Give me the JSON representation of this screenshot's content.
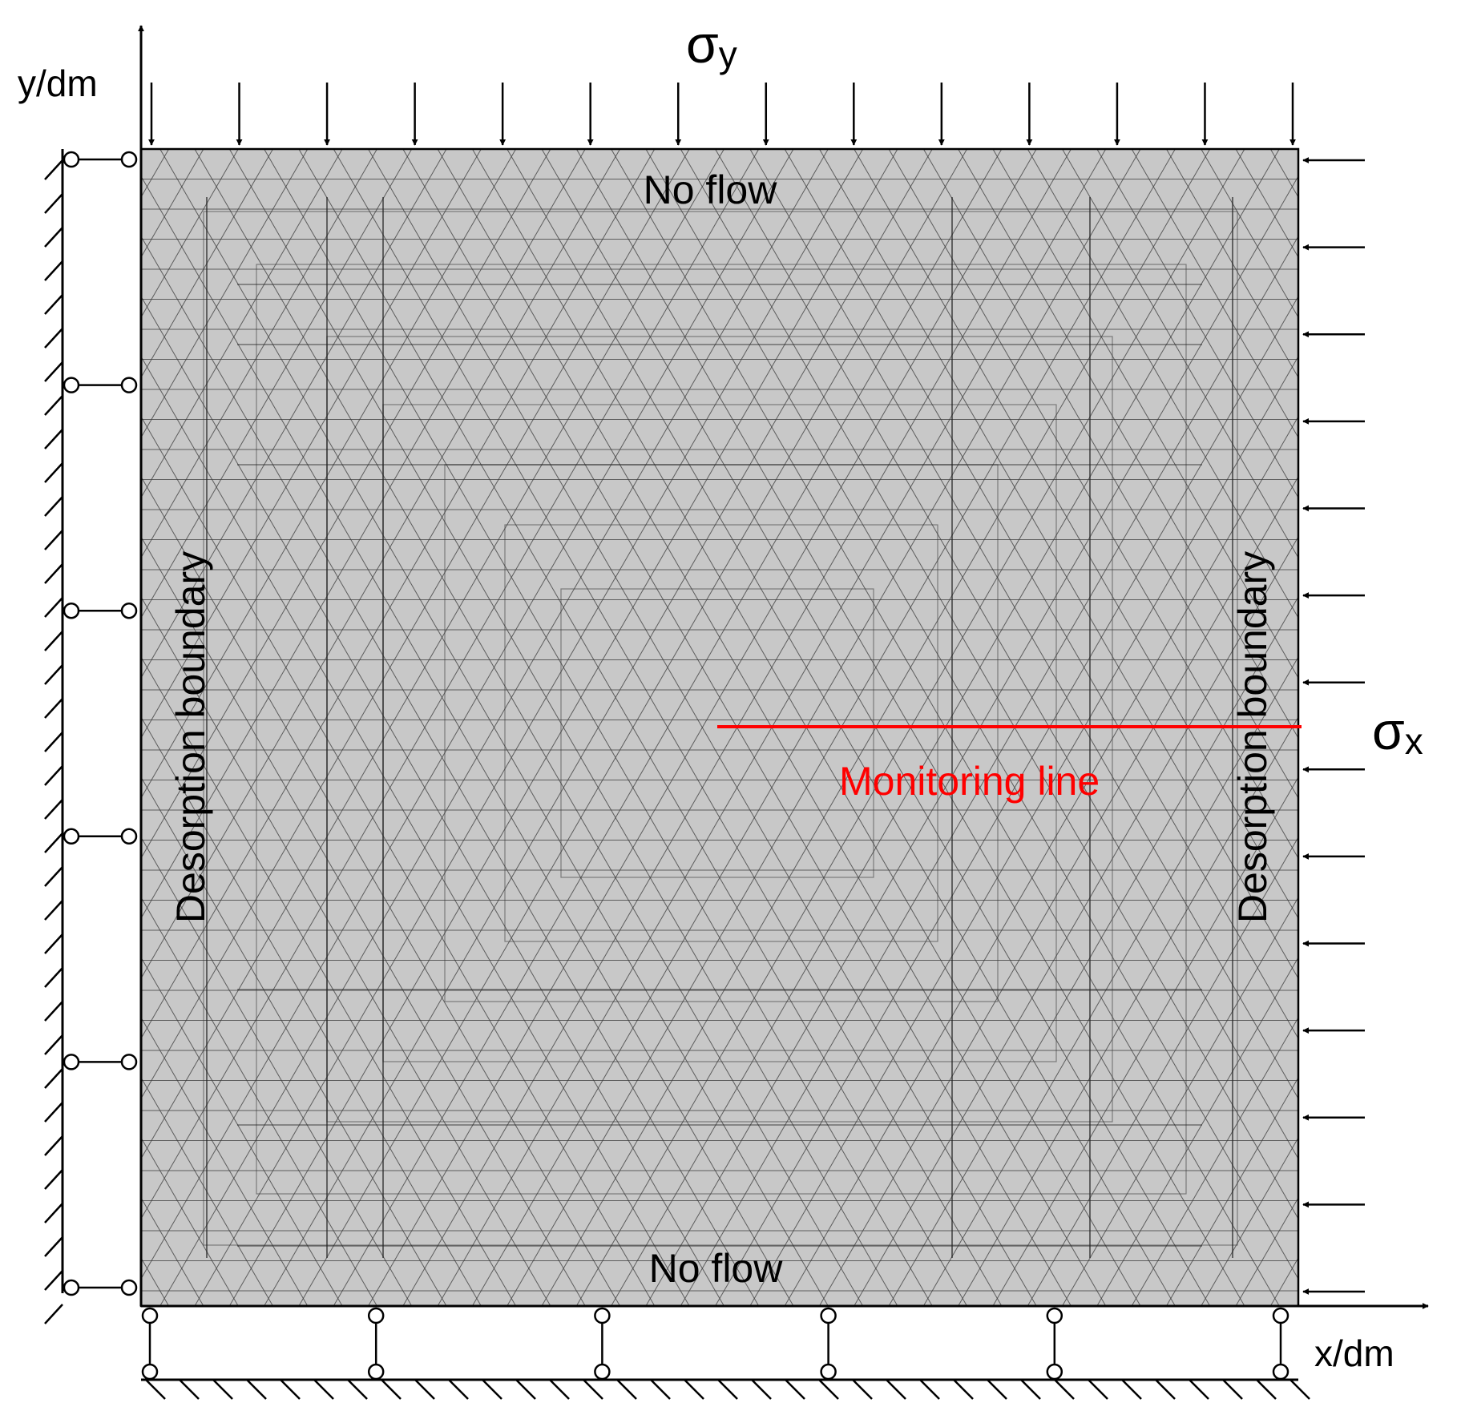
{
  "labels": {
    "y_axis": "y/dm",
    "x_axis": "x/dm",
    "sigma_y": "σ",
    "sigma_y_sub": "y",
    "sigma_x": "σ",
    "sigma_x_sub": "x",
    "top_boundary": "No flow",
    "bottom_boundary": "No flow",
    "left_boundary": "Desorption boundary",
    "right_boundary": "Desorption boundary",
    "monitoring_line": "Monitoring line"
  },
  "colors": {
    "domain_fill": "#c8c8c8",
    "mesh_line": "#3a3a3a",
    "monitoring_line": "#ff0000",
    "ink": "#000000"
  },
  "annotations": {
    "load_arrows_top": 14,
    "load_arrows_right": 14,
    "roller_supports_left": 6,
    "roller_supports_bottom": 6
  }
}
